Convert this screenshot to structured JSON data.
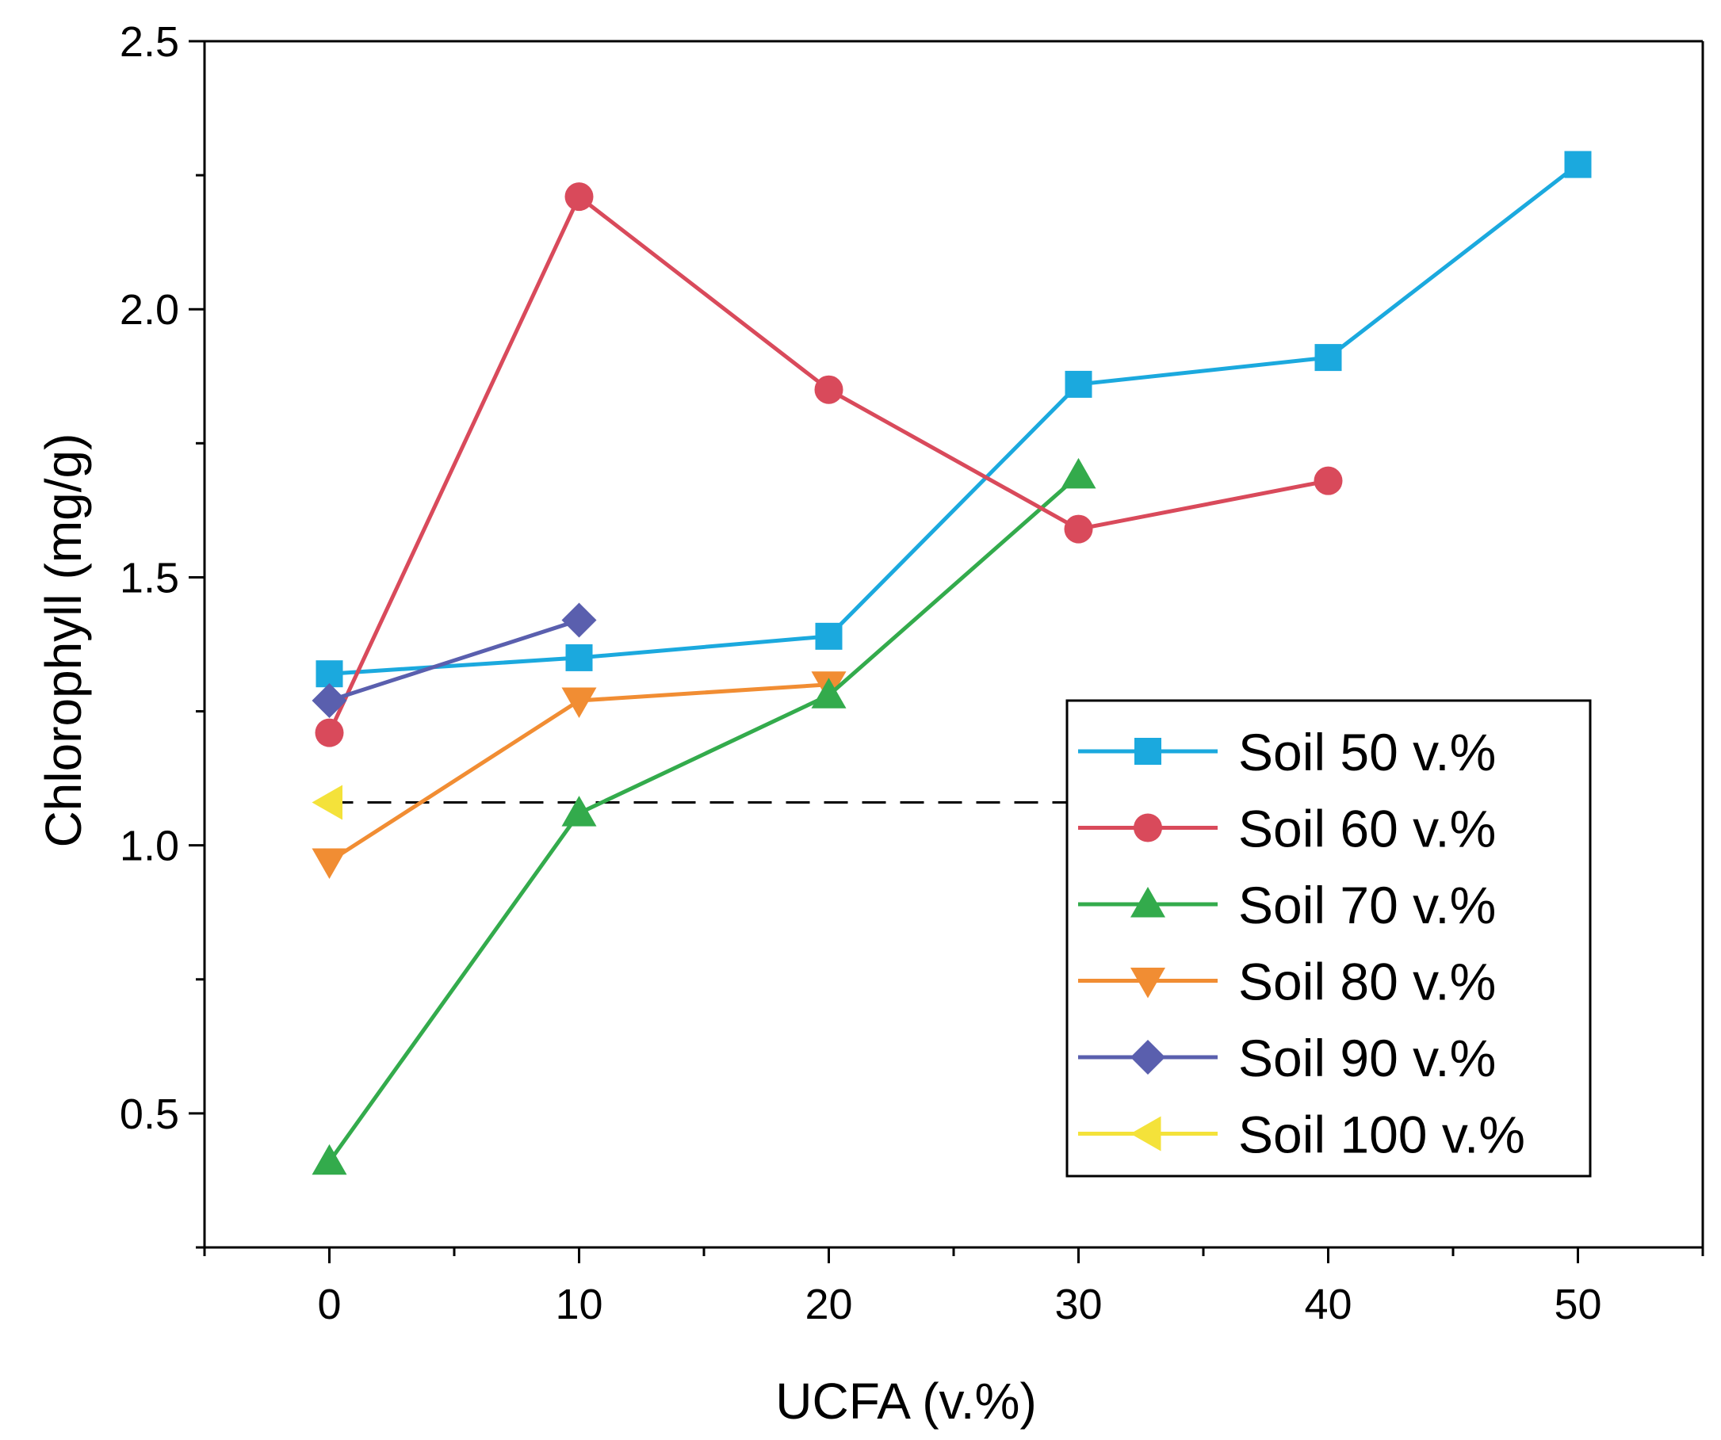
{
  "chart_data": {
    "type": "line",
    "title": "",
    "xlabel": "UCFA (v.%)",
    "ylabel": "Chlorophyll (mg/g)",
    "xlim": [
      -5,
      55
    ],
    "ylim": [
      0.25,
      2.5
    ],
    "x_ticks": [
      0,
      10,
      20,
      30,
      40,
      50
    ],
    "x_tick_labels": [
      "0",
      "10",
      "20",
      "30",
      "40",
      "50"
    ],
    "x_minor_ticks": [
      -5,
      5,
      15,
      25,
      35,
      45,
      55
    ],
    "y_ticks": [
      0.5,
      1.0,
      1.5,
      2.0,
      2.5
    ],
    "y_tick_labels": [
      "0.5",
      "1.0",
      "1.5",
      "2.0",
      "2.5"
    ],
    "y_minor_ticks": [
      0.25,
      0.75,
      1.25,
      1.75,
      2.25
    ],
    "grid": false,
    "legend_position": "lower-right",
    "series": [
      {
        "name": "Soil 50 v.%",
        "color": "#1ba9de",
        "marker": "square",
        "x": [
          0,
          10,
          20,
          30,
          40,
          50
        ],
        "values": [
          1.32,
          1.35,
          1.39,
          1.86,
          1.91,
          2.27
        ]
      },
      {
        "name": "Soil 60 v.%",
        "color": "#d94a5b",
        "marker": "circle",
        "x": [
          0,
          10,
          20,
          30,
          40
        ],
        "values": [
          1.21,
          2.21,
          1.85,
          1.59,
          1.68
        ]
      },
      {
        "name": "Soil 70 v.%",
        "color": "#33ab4c",
        "marker": "triangle-up",
        "x": [
          0,
          10,
          20,
          30
        ],
        "values": [
          0.41,
          1.06,
          1.28,
          1.69
        ]
      },
      {
        "name": "Soil 80 v.%",
        "color": "#f18d33",
        "marker": "triangle-down",
        "x": [
          0,
          10,
          20
        ],
        "values": [
          0.97,
          1.27,
          1.3
        ]
      },
      {
        "name": "Soil 90 v.%",
        "color": "#5a5fae",
        "marker": "diamond",
        "x": [
          0,
          10
        ],
        "values": [
          1.27,
          1.42
        ]
      },
      {
        "name": "Soil 100 v.%",
        "color": "#f4e23a",
        "marker": "triangle-left",
        "x": [
          0
        ],
        "values": [
          1.08
        ]
      }
    ],
    "reference_line": {
      "y": 1.08,
      "x_from": 0,
      "x_to": 30,
      "color": "#000000",
      "style": "dashed"
    }
  }
}
